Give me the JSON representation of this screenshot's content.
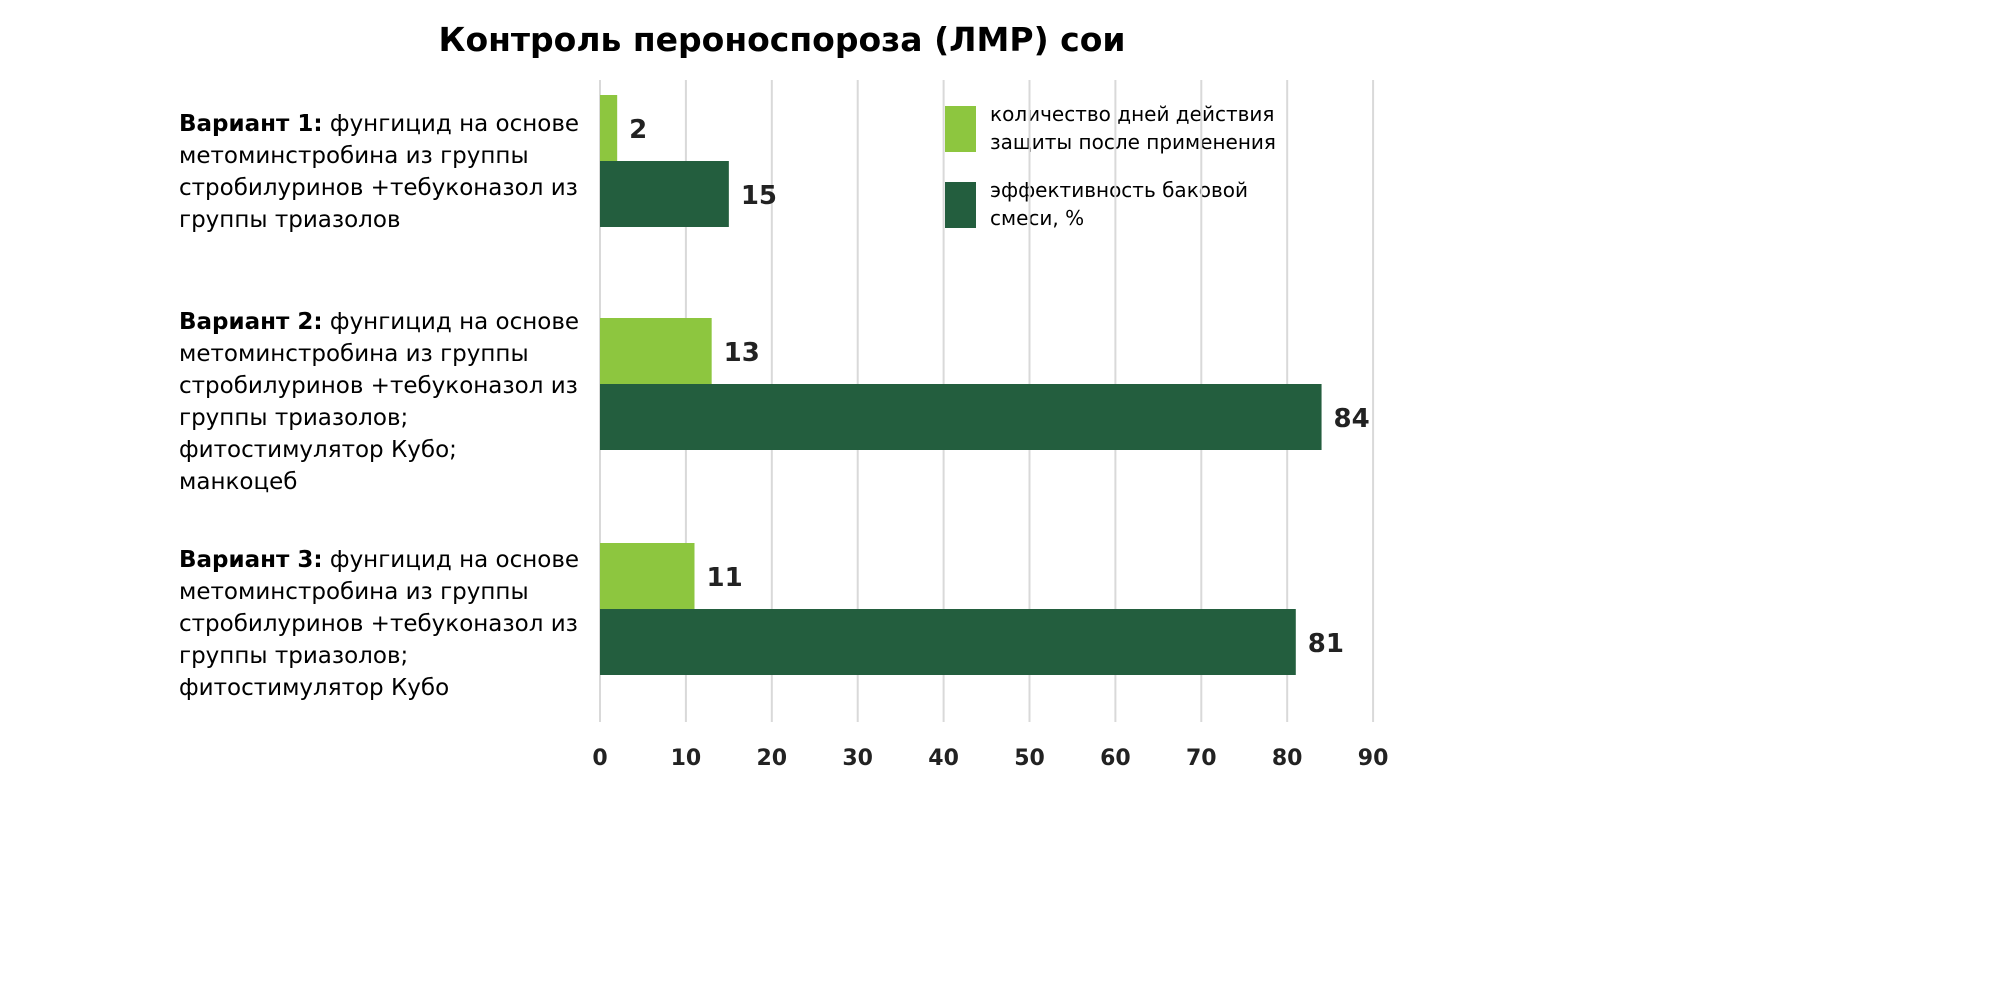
{
  "chart_data": {
    "type": "bar",
    "orientation": "horizontal",
    "title": "Контроль пероноспороза (ЛМР) сои",
    "categories": [
      {
        "name": "Вариант 1:",
        "lines": [
          " фунгицид на основе",
          "метоминстробина из группы",
          "стробилуринов +тебуконазол из",
          "группы триазолов"
        ]
      },
      {
        "name": "Вариант 2:",
        "lines": [
          " фунгицид на основе",
          "метоминстробина из группы",
          "стробилуринов +тебуконазол из",
          "группы триазолов;",
          "фитостимулятор Кубо;",
          "манкоцеб"
        ]
      },
      {
        "name": "Вариант 3:",
        "lines": [
          " фунгицид на основе",
          "метоминстробина из группы",
          "стробилуринов +тебуконазол из",
          "группы триазолов;",
          "фитостимулятор Кубо"
        ]
      }
    ],
    "series": [
      {
        "name_lines": [
          "количество дней действия",
          "защиты после применения"
        ],
        "color": "#8dc63f",
        "values": [
          2,
          13,
          11
        ]
      },
      {
        "name_lines": [
          "эффективность баковой",
          "смеси, %"
        ],
        "color": "#235e3e",
        "values": [
          15,
          84,
          81
        ]
      }
    ],
    "xlim": [
      0,
      90
    ],
    "xticks": [
      0,
      10,
      20,
      30,
      40,
      50,
      60,
      70,
      80,
      90
    ],
    "grid": "vertical",
    "legend_position": "top-right"
  }
}
